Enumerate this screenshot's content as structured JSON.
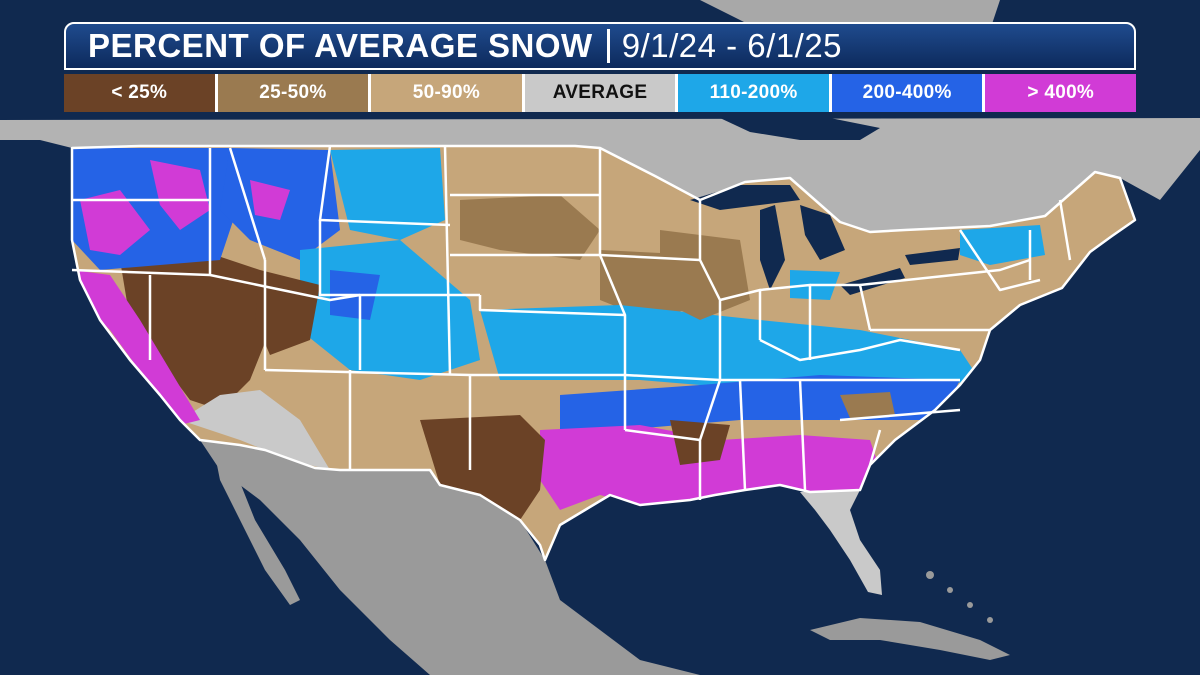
{
  "header": {
    "title": "PERCENT OF AVERAGE SNOW",
    "date_range": "9/1/24 - 6/1/25"
  },
  "legend": [
    {
      "label": "< 25%",
      "color": "#6b4226",
      "text_color": "#ffffff"
    },
    {
      "label": "25-50%",
      "color": "#9a7a50",
      "text_color": "#ffffff"
    },
    {
      "label": "50-90%",
      "color": "#c6a67a",
      "text_color": "#ffffff"
    },
    {
      "label": "AVERAGE",
      "color": "#c9c9c9",
      "text_color": "#111111"
    },
    {
      "label": "110-200%",
      "color": "#1ea7e8",
      "text_color": "#ffffff"
    },
    {
      "label": "200-400%",
      "color": "#2563e6",
      "text_color": "#ffffff"
    },
    {
      "label": "> 400%",
      "color": "#d13bd6",
      "text_color": "#ffffff"
    }
  ],
  "map": {
    "ocean_color": "#10294f",
    "land_color": "#9a9a9a",
    "border_color": "#ffffff",
    "regions": [
      {
        "name": "pacific-northwest",
        "category": "200-400%"
      },
      {
        "name": "california-coast",
        "category": "> 400%"
      },
      {
        "name": "great-basin",
        "category": "< 25%"
      },
      {
        "name": "northern-rockies",
        "category": "200-400%"
      },
      {
        "name": "central-rockies",
        "category": "110-200%"
      },
      {
        "name": "southwest",
        "category": "50-90%"
      },
      {
        "name": "desert-southwest",
        "category": "AVERAGE"
      },
      {
        "name": "northern-plains",
        "category": "50-90%"
      },
      {
        "name": "central-plains",
        "category": "25-50%"
      },
      {
        "name": "midwest",
        "category": "50-90%"
      },
      {
        "name": "ohio-valley",
        "category": "110-200%"
      },
      {
        "name": "tennessee-valley",
        "category": "200-400%"
      },
      {
        "name": "texas",
        "category": "< 25%"
      },
      {
        "name": "gulf-coast",
        "category": "> 400%"
      },
      {
        "name": "southeast",
        "category": "> 400%"
      },
      {
        "name": "carolinas",
        "category": "200-400%"
      },
      {
        "name": "northeast",
        "category": "50-90%"
      },
      {
        "name": "new-england",
        "category": "50-90%"
      },
      {
        "name": "florida",
        "category": "AVERAGE"
      }
    ]
  }
}
